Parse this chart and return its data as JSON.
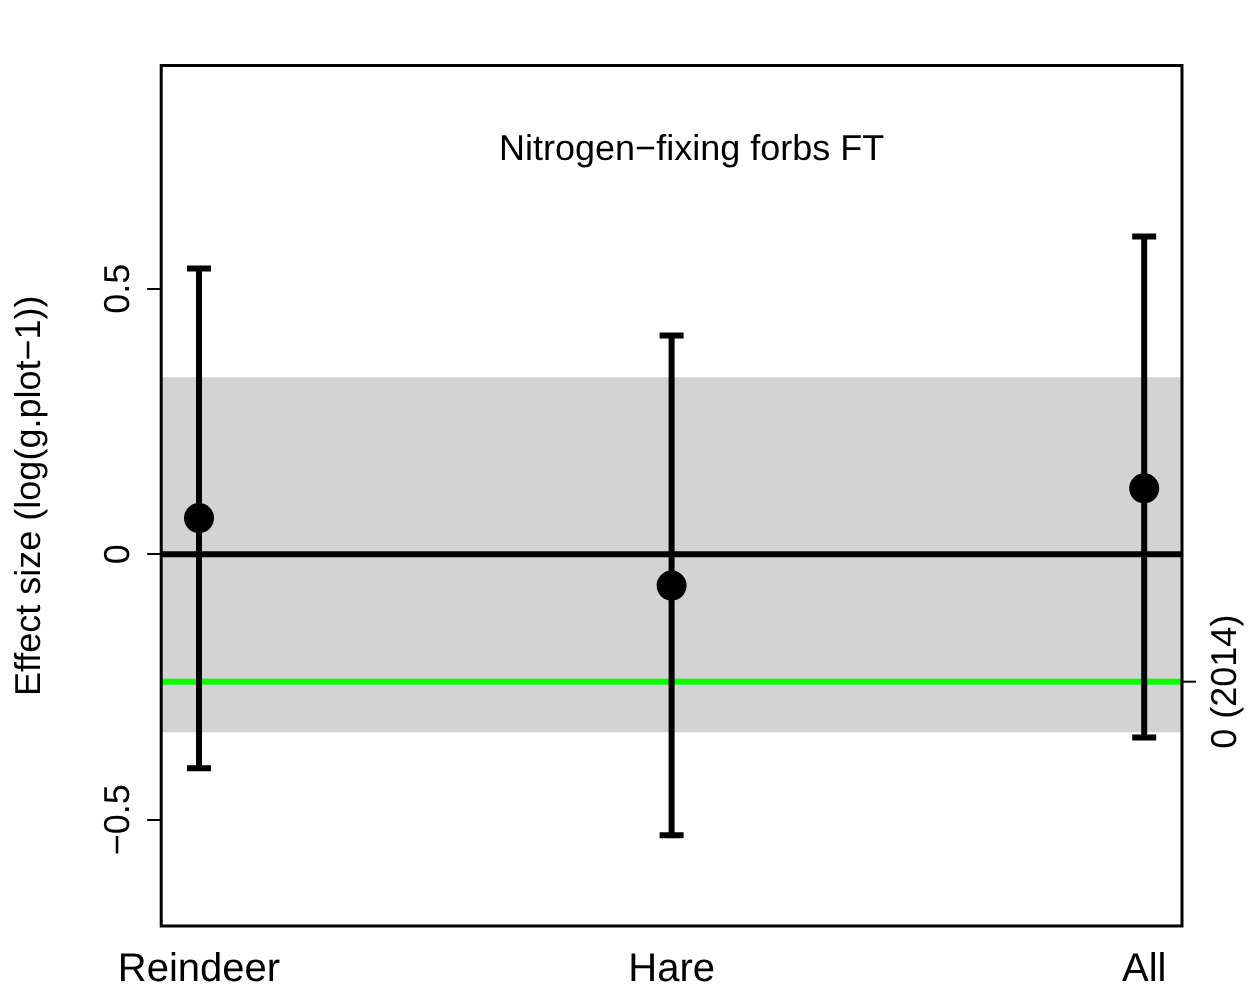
{
  "chart_data": {
    "type": "scatter",
    "title": "Nitrogen−fixing forbs FT",
    "ylabel": "Effect size (log(g.plot−1))",
    "categories": [
      "Reindeer",
      "Hare",
      "All"
    ],
    "series": [
      {
        "color": "#000000",
        "values": [
          0.068,
          -0.059,
          0.124
        ],
        "errors": [
          [
            -0.403,
            0.538
          ],
          [
            -0.529,
            0.412
          ],
          [
            -0.345,
            0.598
          ]
        ]
      }
    ],
    "ylim": [
      -0.7,
      0.92
    ],
    "yticks": [
      {
        "value": -0.5,
        "label": "−0.5"
      },
      0,
      0.5
    ],
    "ref_lines": [
      {
        "axis": "y",
        "value": 0,
        "color": "#000000"
      },
      {
        "axis": "y",
        "value": -0.24,
        "label": "0 (2014)",
        "color": "#00ff00"
      }
    ],
    "bands": [
      {
        "axis": "y",
        "from": -0.335,
        "to": 0.333,
        "color": "#d3d3d3"
      }
    ],
    "marker": "circle",
    "grid": false,
    "legend": false
  }
}
